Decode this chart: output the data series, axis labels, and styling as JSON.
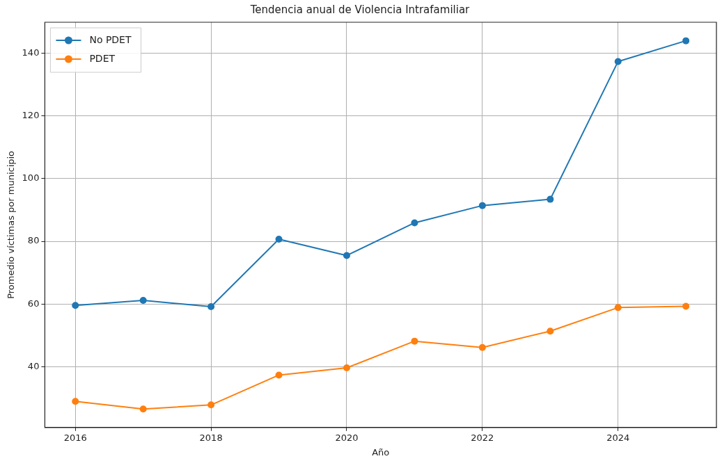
{
  "chart_data": {
    "type": "line",
    "title": "Tendencia anual de Violencia Intrafamiliar",
    "xlabel": "Año",
    "ylabel": "Promedio víctimas por municipio",
    "x": [
      2016,
      2017,
      2018,
      2019,
      2020,
      2021,
      2022,
      2023,
      2024,
      2025
    ],
    "series": [
      {
        "name": "No PDET",
        "color": "#1f77b4",
        "values": [
          59.6,
          61.2,
          59.2,
          80.7,
          75.5,
          85.9,
          91.4,
          93.4,
          137.3,
          143.9
        ]
      },
      {
        "name": "PDET",
        "color": "#ff7f0e",
        "values": [
          29.0,
          26.6,
          27.9,
          37.4,
          39.7,
          48.2,
          46.2,
          51.4,
          58.9,
          59.3
        ]
      }
    ],
    "xlim": [
      2015.55,
      2025.45
    ],
    "xticks": [
      2016,
      2018,
      2020,
      2022,
      2024
    ],
    "ylim": [
      20.7,
      149.8
    ],
    "yticks": [
      40,
      60,
      80,
      100,
      120,
      140
    ],
    "grid": true,
    "legend": "top left",
    "marker": "circle",
    "line_style": "solid"
  }
}
